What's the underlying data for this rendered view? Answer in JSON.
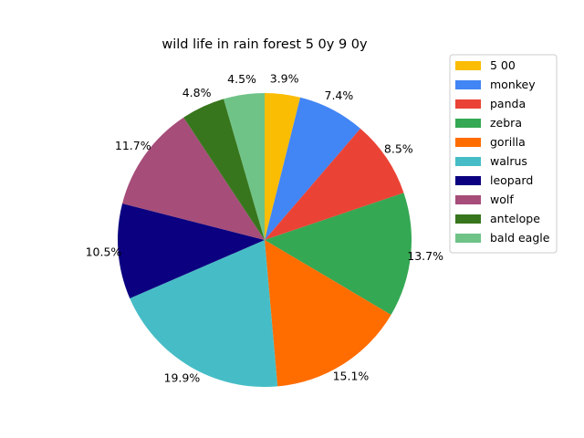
{
  "chart_data": {
    "type": "pie",
    "title": "wild life in rain forest 5 0y 9 0y",
    "categories": [
      "5 00",
      "monkey",
      "panda",
      "zebra",
      "gorilla",
      "walrus",
      "leopard",
      "wolf",
      "antelope",
      "bald eagle"
    ],
    "values": [
      3.9,
      7.4,
      8.5,
      13.7,
      15.1,
      19.9,
      10.5,
      11.7,
      4.8,
      4.5
    ],
    "value_labels": [
      "3.9%",
      "7.4%",
      "8.5%",
      "13.7%",
      "15.1%",
      "19.9%",
      "10.5%",
      "11.7%",
      "4.8%",
      "4.5%"
    ],
    "colors": [
      "#fbbc04",
      "#4285f4",
      "#ea4335",
      "#34a853",
      "#ff6d01",
      "#46bdc6",
      "#0b0080",
      "#a64d79",
      "#38761d",
      "#6fc387"
    ],
    "start_angle": "90 degrees (12 o'clock)",
    "direction": "clockwise",
    "legend_position": "upper-right"
  }
}
